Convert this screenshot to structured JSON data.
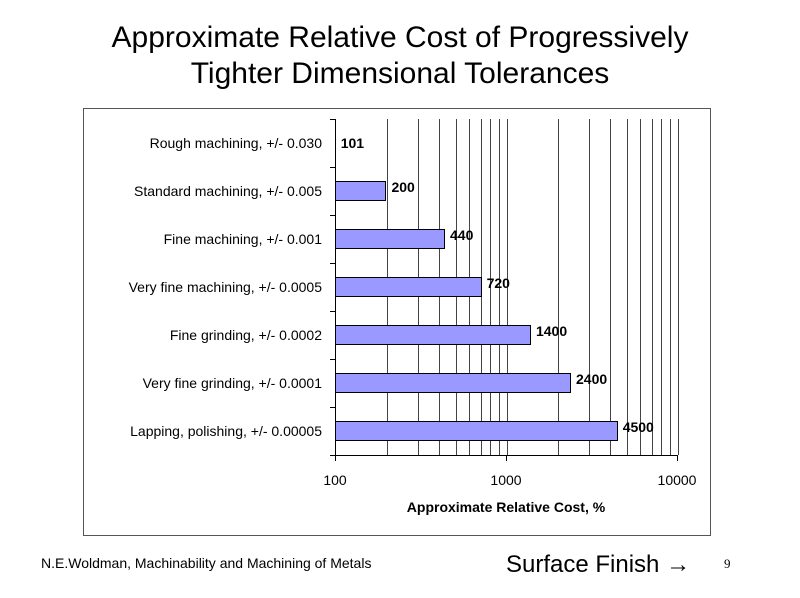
{
  "slide": {
    "title_line1": "Approximate Relative Cost of Progressively",
    "title_line2": "Tighter Dimensional Tolerances",
    "source": "N.E.Woldman, Machinability and Machining of Metals",
    "nav_link": "Surface Finish →",
    "page_number": "9"
  },
  "chart_data": {
    "type": "bar",
    "orientation": "horizontal",
    "title": "Approximate Relative Cost of Progressively Tighter Dimensional Tolerances",
    "categories": [
      "Rough machining, +/- 0.030",
      "Standard machining, +/- 0.005",
      "Fine machining, +/- 0.001",
      "Very fine machining, +/- 0.0005",
      "Fine grinding, +/- 0.0002",
      "Very fine grinding, +/- 0.0001",
      "Lapping, polishing, +/- 0.00005"
    ],
    "values": [
      101,
      200,
      440,
      720,
      1400,
      2400,
      4500
    ],
    "value_labels": [
      "101",
      "200",
      "440",
      "720",
      "1400",
      "2400",
      "4500"
    ],
    "xlabel": "Approximate Relative Cost, %",
    "ylabel": "",
    "xscale": "log",
    "xlim": [
      100,
      10000
    ],
    "xticks": [
      "100",
      "1000",
      "10000"
    ],
    "grid": "vertical minor log gridlines",
    "bar_color": "#9999ff",
    "legend": null
  }
}
